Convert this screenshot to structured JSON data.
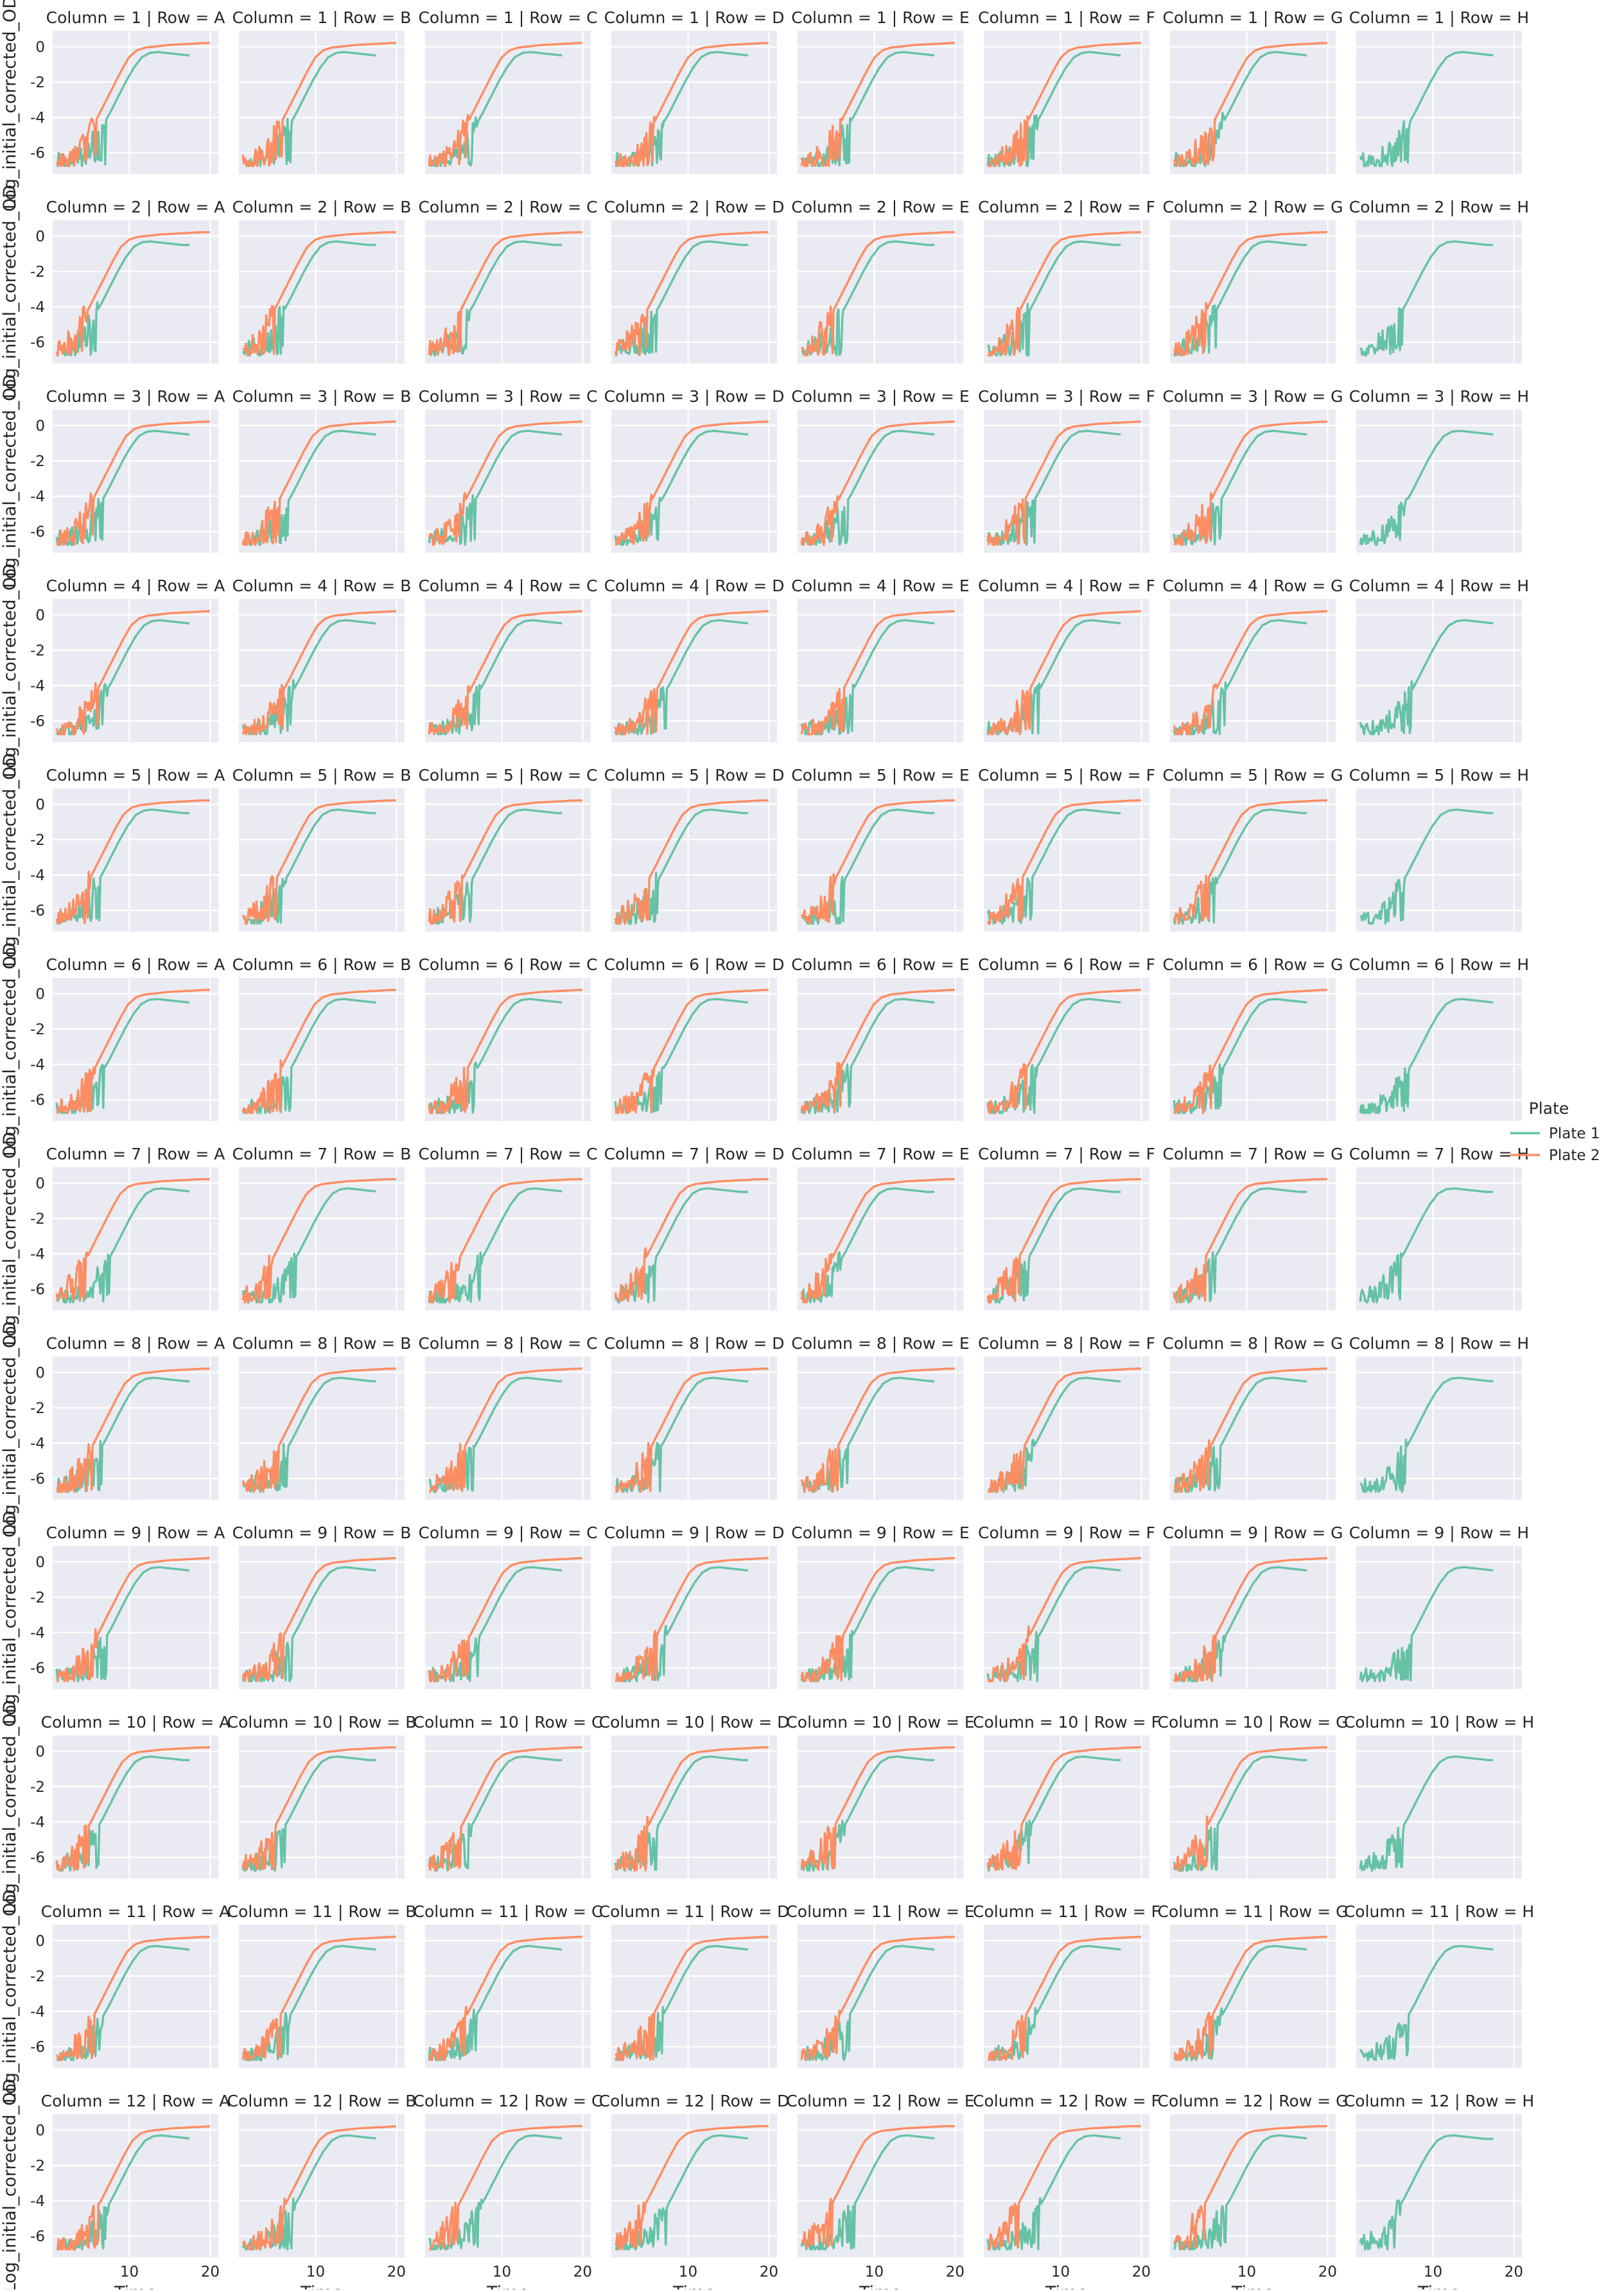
{
  "chart_data": {
    "type": "line",
    "layout": "facet-grid",
    "facet_columns": [
      "A",
      "B",
      "C",
      "D",
      "E",
      "F",
      "G",
      "H"
    ],
    "facet_rows": [
      "1",
      "2",
      "3",
      "4",
      "5",
      "6",
      "7",
      "8",
      "9",
      "10",
      "11",
      "12"
    ],
    "facet_title_template": "Column = {row} | Row = {col}",
    "xlabel": "Time",
    "ylabel": "Log_initial_corrected_OD",
    "xlim": [
      0.5,
      21
    ],
    "ylim": [
      -7.2,
      0.9
    ],
    "x_ticks": [
      10,
      20
    ],
    "y_ticks": [
      0,
      -2,
      -4,
      -6
    ],
    "grid": true,
    "legend": {
      "title": "Plate",
      "placement": "right",
      "entries": [
        {
          "name": "Plate 1",
          "color": "#66c2a5"
        },
        {
          "name": "Plate 2",
          "color": "#fc8d62"
        }
      ]
    },
    "series": [
      {
        "name": "Plate 1",
        "color": "#66c2a5",
        "typical_curve": {
          "x": [
            1,
            2,
            3,
            4,
            5,
            6,
            7,
            8,
            9,
            10,
            11,
            12,
            13,
            14,
            15,
            16,
            17,
            18
          ],
          "y": [
            -6.6,
            -6.5,
            -6.3,
            -5.9,
            -5.3,
            -4.6,
            -3.8,
            -2.9,
            -2.0,
            -1.2,
            -0.6,
            -0.35,
            -0.3,
            -0.35,
            -0.4,
            -0.45,
            -0.5,
            -0.5
          ]
        },
        "note_present_in_all_panels": true
      },
      {
        "name": "Plate 2",
        "color": "#fc8d62",
        "typical_curve": {
          "x": [
            1,
            2,
            3,
            4,
            5,
            6,
            7,
            8,
            9,
            10,
            11,
            12,
            13,
            14,
            15,
            16,
            17,
            18,
            19,
            20
          ],
          "y": [
            -6.7,
            -6.5,
            -6.2,
            -5.6,
            -4.9,
            -4.1,
            -3.2,
            -2.3,
            -1.4,
            -0.6,
            -0.2,
            -0.05,
            0.0,
            0.05,
            0.1,
            0.12,
            0.15,
            0.17,
            0.2,
            0.22
          ]
        },
        "absent_in_column": "H"
      }
    ]
  }
}
